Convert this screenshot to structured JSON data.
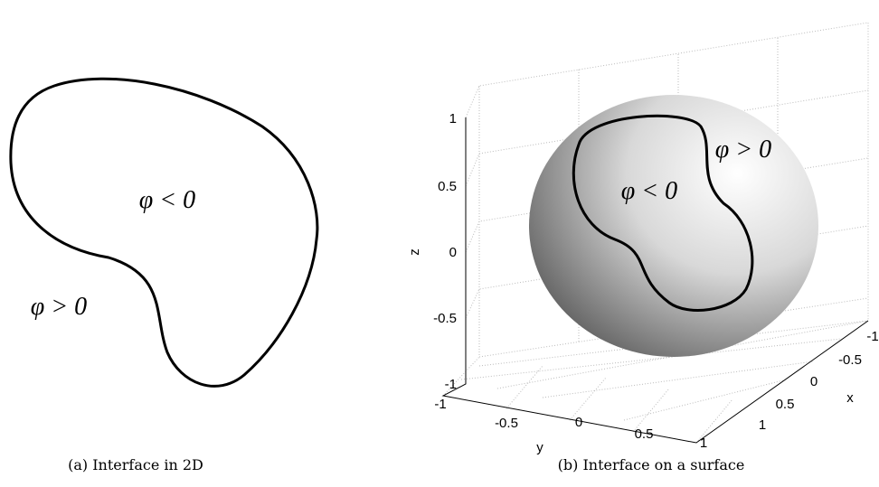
{
  "panels": [
    {
      "inside_label": "φ < 0",
      "outside_label": "φ > 0",
      "caption": "(a) Interface in 2D"
    },
    {
      "inside_label": "φ < 0",
      "outside_label": "φ > 0",
      "caption": "(b) Interface on a surface",
      "axes": {
        "z": {
          "label": "z",
          "ticks": [
            "1",
            "0.5",
            "0",
            "-0.5",
            "-1"
          ]
        },
        "y": {
          "label": "y",
          "ticks": [
            "-1",
            "-0.5",
            "0",
            "0.5",
            "1"
          ]
        },
        "x": {
          "label": "x",
          "ticks": [
            "-1",
            "-0.5",
            "0",
            "0.5",
            "1"
          ]
        }
      }
    }
  ]
}
